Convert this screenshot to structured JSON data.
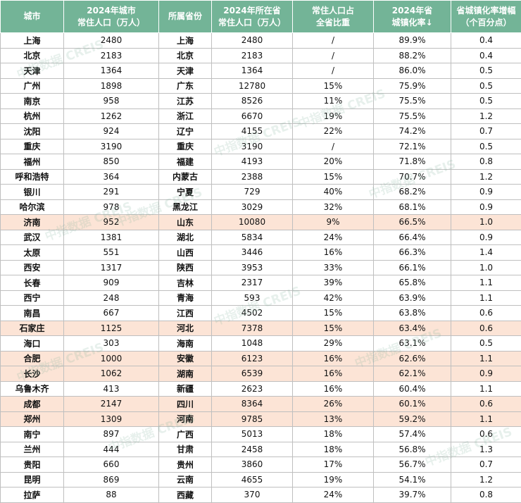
{
  "header": [
    [
      "城市"
    ],
    [
      "2024年城市",
      "常住人口（万人）"
    ],
    [
      "所属省份"
    ],
    [
      "2024年所在省",
      "常住人口（万人）"
    ],
    [
      "常住人口占",
      "全省比重"
    ],
    [
      "2024年省",
      "城镇化率↓"
    ],
    [
      "省城镇化率增幅",
      "（个百分点）"
    ]
  ],
  "rows": [
    [
      "上海",
      "2480",
      "上海",
      "2480",
      "/",
      "89.9%",
      "0.4"
    ],
    [
      "北京",
      "2183",
      "北京",
      "2183",
      "/",
      "88.2%",
      "0.4"
    ],
    [
      "天津",
      "1364",
      "天津",
      "1364",
      "/",
      "86.0%",
      "0.5"
    ],
    [
      "广州",
      "1898",
      "广东",
      "12780",
      "15%",
      "75.9%",
      "0.5"
    ],
    [
      "南京",
      "958",
      "江苏",
      "8526",
      "11%",
      "75.5%",
      "0.5"
    ],
    [
      "杭州",
      "1262",
      "浙江",
      "6670",
      "19%",
      "75.5%",
      "1.2"
    ],
    [
      "沈阳",
      "924",
      "辽宁",
      "4155",
      "22%",
      "74.2%",
      "0.7"
    ],
    [
      "重庆",
      "3190",
      "重庆",
      "3190",
      "/",
      "72.1%",
      "0.5"
    ],
    [
      "福州",
      "850",
      "福建",
      "4193",
      "20%",
      "71.8%",
      "0.8"
    ],
    [
      "呼和浩特",
      "364",
      "内蒙古",
      "2388",
      "15%",
      "70.7%",
      "1.2"
    ],
    [
      "银川",
      "291",
      "宁夏",
      "729",
      "40%",
      "68.2%",
      "0.9"
    ],
    [
      "哈尔滨",
      "978",
      "黑龙江",
      "3029",
      "32%",
      "68.1%",
      "0.9"
    ],
    [
      "济南",
      "952",
      "山东",
      "10080",
      "9%",
      "66.5%",
      "1.0"
    ],
    [
      "武汉",
      "1381",
      "湖北",
      "5834",
      "24%",
      "66.4%",
      "0.9"
    ],
    [
      "太原",
      "551",
      "山西",
      "3446",
      "16%",
      "66.3%",
      "1.4"
    ],
    [
      "西安",
      "1317",
      "陕西",
      "3953",
      "33%",
      "66.1%",
      "1.0"
    ],
    [
      "长春",
      "909",
      "吉林",
      "2317",
      "39%",
      "65.8%",
      "1.1"
    ],
    [
      "西宁",
      "248",
      "青海",
      "593",
      "42%",
      "63.9%",
      "1.1"
    ],
    [
      "南昌",
      "667",
      "江西",
      "4502",
      "15%",
      "63.8%",
      "0.6"
    ],
    [
      "石家庄",
      "1125",
      "河北",
      "7378",
      "15%",
      "63.4%",
      "0.6"
    ],
    [
      "海口",
      "303",
      "海南",
      "1048",
      "29%",
      "63.1%",
      "0.5"
    ],
    [
      "合肥",
      "1000",
      "安徽",
      "6123",
      "16%",
      "62.6%",
      "1.1"
    ],
    [
      "长沙",
      "1062",
      "湖南",
      "6539",
      "16%",
      "62.1%",
      "0.9"
    ],
    [
      "乌鲁木齐",
      "413",
      "新疆",
      "2623",
      "16%",
      "60.4%",
      "1.1"
    ],
    [
      "成都",
      "2147",
      "四川",
      "8364",
      "26%",
      "60.1%",
      "0.6"
    ],
    [
      "郑州",
      "1309",
      "河南",
      "9785",
      "13%",
      "59.2%",
      "1.1"
    ],
    [
      "南宁",
      "897",
      "广西",
      "5013",
      "18%",
      "57.4%",
      "0.6"
    ],
    [
      "兰州",
      "444",
      "甘肃",
      "2458",
      "18%",
      "56.8%",
      "1.3"
    ],
    [
      "贵阳",
      "660",
      "贵州",
      "3860",
      "17%",
      "56.7%",
      "0.7"
    ],
    [
      "昆明",
      "869",
      "云南",
      "4655",
      "19%",
      "54.1%",
      "1.2"
    ],
    [
      "拉萨",
      "88",
      "西藏",
      "370",
      "24%",
      "39.7%",
      "0.8"
    ]
  ],
  "highlighted_rows": [
    12,
    19,
    21,
    22,
    24,
    25
  ],
  "highlight_color": "#fce4d6",
  "header_color": "#73b497",
  "watermark": "中指数据 CREIS"
}
